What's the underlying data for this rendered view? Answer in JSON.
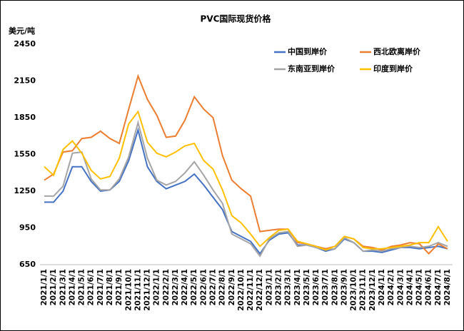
{
  "chart_data": {
    "type": "line",
    "title": "PVC国际现货价格",
    "y_label": "美元/吨",
    "categories": [
      "2021/1/1",
      "2021/2/1",
      "2021/3/1",
      "2021/4/1",
      "2021/5/1",
      "2021/6/1",
      "2021/7/1",
      "2021/8/1",
      "2021/9/1",
      "2021/10/1",
      "2021/11/1",
      "2021/12/1",
      "2022/1/1",
      "2022/2/1",
      "2022/3/1",
      "2022/4/1",
      "2022/5/1",
      "2022/6/1",
      "2022/7/1",
      "2022/8/1",
      "2022/9/1",
      "2022/10/1",
      "2022/11/1",
      "2022/12/1",
      "2023/1/1",
      "2023/2/1",
      "2023/3/1",
      "2023/4/1",
      "2023/5/1",
      "2023/6/1",
      "2023/7/1",
      "2023/8/1",
      "2023/9/1",
      "2023/10/1",
      "2023/11/1",
      "2023/12/1",
      "2024/1/1",
      "2024/2/1",
      "2024/3/1",
      "2024/4/1",
      "2024/5/1",
      "2024/6/1",
      "2024/7/1",
      "2024/8/1"
    ],
    "ylim": [
      650,
      2450
    ],
    "yticks": [
      650,
      950,
      1250,
      1550,
      1850,
      2150,
      2450
    ],
    "grid": false,
    "series": [
      {
        "name": "中国到岸价",
        "color": "#4472c4",
        "values": [
          1160,
          1160,
          1250,
          1450,
          1450,
          1330,
          1250,
          1260,
          1330,
          1500,
          1750,
          1450,
          1330,
          1270,
          1300,
          1330,
          1390,
          1300,
          1200,
          1100,
          920,
          880,
          840,
          740,
          850,
          900,
          910,
          810,
          810,
          790,
          760,
          780,
          860,
          830,
          760,
          760,
          750,
          770,
          790,
          790,
          780,
          790,
          800,
          780
        ]
      },
      {
        "name": "西北欧离岸价",
        "color": "#ed7d31",
        "values": [
          1340,
          1390,
          1570,
          1580,
          1680,
          1690,
          1740,
          1680,
          1640,
          1920,
          2190,
          2000,
          1870,
          1690,
          1700,
          1830,
          2020,
          1920,
          1850,
          1540,
          1340,
          1270,
          1210,
          920,
          930,
          940,
          940,
          830,
          820,
          800,
          780,
          800,
          880,
          860,
          800,
          790,
          770,
          800,
          810,
          830,
          820,
          740,
          820,
          780
        ]
      },
      {
        "name": "东南亚到岸价",
        "color": "#a5a5a5",
        "values": [
          1210,
          1210,
          1290,
          1560,
          1570,
          1350,
          1260,
          1260,
          1350,
          1530,
          1810,
          1520,
          1340,
          1300,
          1330,
          1400,
          1490,
          1380,
          1260,
          1150,
          900,
          860,
          820,
          720,
          860,
          910,
          920,
          800,
          810,
          790,
          770,
          780,
          870,
          830,
          760,
          770,
          760,
          780,
          790,
          800,
          790,
          800,
          830,
          800
        ]
      },
      {
        "name": "印度到岸价",
        "color": "#ffc000",
        "values": [
          1450,
          1380,
          1590,
          1660,
          1560,
          1420,
          1350,
          1370,
          1520,
          1800,
          1900,
          1650,
          1560,
          1530,
          1570,
          1620,
          1640,
          1500,
          1430,
          1260,
          1050,
          990,
          900,
          800,
          870,
          930,
          940,
          840,
          820,
          800,
          770,
          800,
          880,
          860,
          790,
          780,
          780,
          790,
          800,
          810,
          830,
          830,
          960,
          840
        ]
      }
    ]
  }
}
